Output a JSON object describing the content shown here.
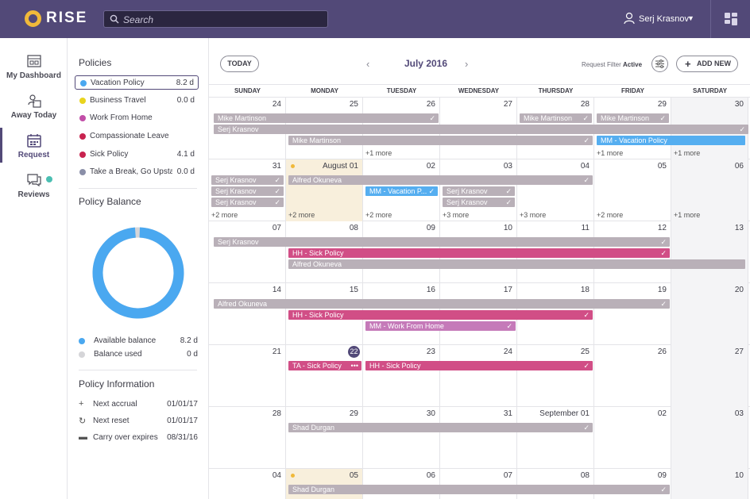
{
  "app": {
    "logo_text": "RISE"
  },
  "search": {
    "placeholder": "Search"
  },
  "user": {
    "name": "Serj Krasnov"
  },
  "nav": {
    "dashboard": "My Dashboard",
    "away_today": "Away Today",
    "request": "Request",
    "reviews": "Reviews"
  },
  "policies": {
    "title": "Policies",
    "items": [
      {
        "name": "Vacation Policy",
        "value": "8.2 d",
        "color": "#4aa8f0"
      },
      {
        "name": "Business Travel",
        "value": "0.0 d",
        "color": "#e9d41e"
      },
      {
        "name": "Work From Home",
        "value": "",
        "color": "#c24ea8"
      },
      {
        "name": "Compassionate Leave",
        "value": "",
        "color": "#c8234f"
      },
      {
        "name": "Sick Policy",
        "value": "4.1 d",
        "color": "#c8234f"
      },
      {
        "name": "Take a Break, Go Upstairs",
        "value": "0.0 d",
        "color": "#8a8fa8"
      }
    ]
  },
  "balance": {
    "title": "Policy Balance",
    "available_label": "Available balance",
    "available_value": "8.2 d",
    "used_label": "Balance used",
    "used_value": "0 d",
    "available_fraction": 1.0,
    "colors": {
      "available": "#4aa8f0",
      "used": "#d5d5d8"
    }
  },
  "info": {
    "title": "Policy Information",
    "rows": [
      {
        "label": "Next accrual",
        "value": "01/01/17"
      },
      {
        "label": "Next reset",
        "value": "01/01/17"
      },
      {
        "label": "Carry over expires",
        "value": "08/31/16"
      }
    ]
  },
  "calendar": {
    "today_label": "TODAY",
    "month": "July 2016",
    "filter_label": "Request Filter",
    "filter_state": "Active",
    "add_label": "ADD NEW",
    "days_of_week": [
      "SUNDAY",
      "MONDAY",
      "TUESDAY",
      "WEDNESDAY",
      "THURSDAY",
      "FRIDAY",
      "SATURDAY"
    ],
    "weeks": [
      [
        "24",
        "25",
        "26",
        "27",
        "28",
        "29",
        "30"
      ],
      [
        "31",
        "August 01",
        "02",
        "03",
        "04",
        "05",
        "06"
      ],
      [
        "07",
        "08",
        "09",
        "10",
        "11",
        "12",
        "13"
      ],
      [
        "14",
        "15",
        "16",
        "17",
        "18",
        "19",
        "20"
      ],
      [
        "21",
        "22",
        "23",
        "24",
        "25",
        "26",
        "27"
      ],
      [
        "28",
        "29",
        "30",
        "31",
        "September 01",
        "02",
        "03"
      ],
      [
        "04",
        "05",
        "06",
        "07",
        "08",
        "09",
        "10"
      ]
    ],
    "more_labels": {
      "w0_tue": "+1 more",
      "w0_fri": "+1 more",
      "w0_sat": "+1 more",
      "w1_sun": "+2 more",
      "w1_mon": "+2 more",
      "w1_tue": "+2 more",
      "w1_wed": "+3 more",
      "w1_thu": "+3 more",
      "w1_fri": "+2 more",
      "w1_sat": "+1 more"
    },
    "events": {
      "mike1": "Mike Martinson",
      "mike2": "Mike Martinson",
      "mike3": "Mike Martinson",
      "mike4": "Mike Martinson",
      "serj_long": "Serj Krasnov",
      "mm_vac": "MM - Vacation Policy",
      "serj_a": "Serj Krasnov",
      "serj_b": "Serj Krasnov",
      "serj_c": "Serj Krasnov",
      "alfred1": "Alfred Okuneva",
      "mm_vac2": "MM - Vacation P...",
      "serj_d": "Serj Krasnov",
      "serj_e": "Serj Krasnov",
      "serj_w3": "Serj Krasnov",
      "hh_sick1": "HH - Sick Policy",
      "alfred2": "Alfred Okuneva",
      "alfred3": "Alfred Okuneva",
      "hh_sick2": "HH - Sick Policy",
      "mm_wfh": "MM - Work From Home",
      "ta_sick": "TA - Sick Policy",
      "hh_sick3": "HH - Sick Policy",
      "shad1": "Shad Durgan",
      "shad2": "Shad Durgan"
    },
    "colors": {
      "gray": "#b9b0b8",
      "blue": "#55aef0",
      "pink": "#d14e86",
      "purple": "#c57ab9"
    }
  }
}
